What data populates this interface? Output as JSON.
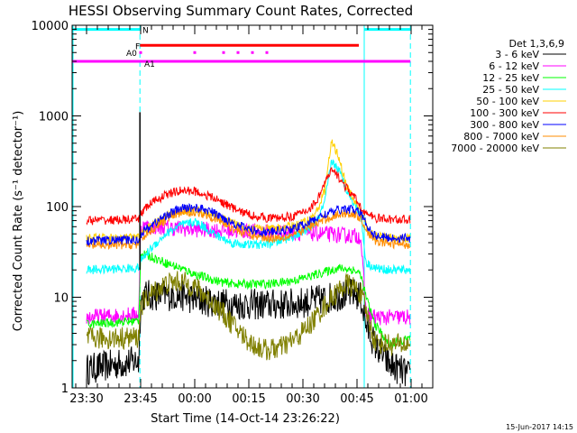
{
  "chart_data": {
    "type": "line",
    "title": "HESSI Observing Summary Count Rates, Corrected",
    "xlabel": "Start Time (14-Oct-14 23:26:22)",
    "ylabel": "Corrected Count Rate (s⁻¹ detector⁻¹)",
    "ylim": [
      1,
      10000
    ],
    "yscale": "log",
    "xlim_minutes": [
      -4,
      96
    ],
    "x_ticks": [
      "23:30",
      "23:45",
      "00:00",
      "00:15",
      "00:30",
      "00:45",
      "01:00"
    ],
    "y_ticks": [
      "1",
      "10",
      "100",
      "1000",
      "10000"
    ],
    "footer_date": "15-Jun-2017 14:15",
    "legend": {
      "title": "Det 1,3,6,9",
      "placement": "right"
    },
    "series": [
      {
        "name": "3 - 6 keV",
        "color": "#000000",
        "x_min": [
          0,
          14.5,
          15,
          16,
          18,
          22,
          26,
          30,
          34,
          38,
          42,
          46,
          50,
          54,
          58,
          62,
          66,
          70,
          74,
          76,
          77.5,
          80,
          84,
          88,
          89.8
        ],
        "y": [
          1.6,
          2.0,
          9.0,
          10.5,
          10.5,
          10.5,
          10.5,
          9.5,
          9.0,
          8.5,
          8.3,
          8.3,
          8.3,
          8.3,
          8.5,
          9.0,
          9.5,
          10.5,
          11,
          10,
          5,
          3,
          1.8,
          1.5,
          1.3
        ]
      },
      {
        "name": "6 - 12 keV",
        "color": "#ff00ff",
        "x_min": [
          0,
          14.5,
          15,
          18,
          24,
          30,
          36,
          42,
          48,
          54,
          60,
          66,
          72,
          76,
          77.5,
          80,
          84,
          89.8
        ],
        "y": [
          6,
          6.5,
          60,
          60,
          58,
          56,
          55,
          54,
          53,
          52,
          51,
          50,
          48,
          47,
          6.5,
          6,
          6,
          6
        ]
      },
      {
        "name": "12 - 25 keV",
        "color": "#00ff00",
        "x_min": [
          0,
          14.5,
          15,
          18,
          22,
          26,
          30,
          34,
          38,
          42,
          46,
          50,
          54,
          58,
          62,
          66,
          70,
          74,
          76,
          77.5,
          80,
          84,
          89.8
        ],
        "y": [
          5,
          5.5,
          30,
          28,
          24,
          21,
          18,
          16,
          14.5,
          14,
          14,
          14,
          14.5,
          15.5,
          17,
          19,
          21,
          20,
          18,
          10,
          5,
          3,
          3.5
        ]
      },
      {
        "name": "25 - 50 keV",
        "color": "#00ffff",
        "x_min": [
          0,
          14.5,
          15,
          18,
          22,
          26,
          30,
          32,
          36,
          40,
          44,
          48,
          52,
          56,
          60,
          64,
          66,
          68,
          70,
          72,
          74,
          76,
          77.5,
          80,
          84,
          89.8
        ],
        "y": [
          20,
          21,
          25,
          35,
          50,
          62,
          68,
          62,
          48,
          40,
          38,
          38,
          40,
          45,
          52,
          70,
          110,
          320,
          250,
          160,
          110,
          85,
          24,
          21,
          20,
          20
        ]
      },
      {
        "name": "50 - 100 keV",
        "color": "#ffd000",
        "x_min": [
          0,
          14.5,
          15,
          18,
          22,
          26,
          30,
          34,
          38,
          42,
          46,
          50,
          54,
          58,
          62,
          64,
          66,
          68,
          70,
          72,
          74,
          76,
          78,
          80,
          84,
          89.8
        ],
        "y": [
          45,
          45,
          50,
          62,
          78,
          90,
          92,
          85,
          72,
          62,
          58,
          56,
          58,
          62,
          72,
          90,
          150,
          520,
          350,
          170,
          120,
          90,
          55,
          47,
          45,
          45
        ]
      },
      {
        "name": "100 - 300 keV",
        "color": "#ff0000",
        "x_min": [
          0,
          14.5,
          15,
          18,
          22,
          26,
          30,
          34,
          38,
          42,
          46,
          50,
          54,
          58,
          62,
          64,
          66,
          68,
          70,
          72,
          74,
          76,
          78,
          80,
          84,
          89.8
        ],
        "y": [
          70,
          72,
          85,
          110,
          135,
          150,
          148,
          130,
          110,
          90,
          80,
          75,
          75,
          80,
          95,
          120,
          180,
          250,
          210,
          160,
          130,
          100,
          80,
          75,
          72,
          72
        ]
      },
      {
        "name": "300 - 800 keV",
        "color": "#0000ff",
        "x_min": [
          0,
          14.5,
          15,
          18,
          22,
          26,
          30,
          34,
          38,
          42,
          46,
          50,
          54,
          58,
          62,
          66,
          70,
          72,
          74,
          76,
          78,
          80,
          84,
          89.8
        ],
        "y": [
          42,
          43,
          50,
          62,
          80,
          95,
          98,
          90,
          75,
          62,
          55,
          52,
          54,
          58,
          68,
          82,
          92,
          95,
          92,
          85,
          60,
          48,
          45,
          45
        ]
      },
      {
        "name": "800 - 7000 keV",
        "color": "#ff8c00",
        "x_min": [
          0,
          14.5,
          15,
          18,
          22,
          26,
          30,
          34,
          38,
          42,
          46,
          50,
          54,
          58,
          62,
          66,
          70,
          72,
          74,
          76,
          78,
          80,
          84,
          89.8
        ],
        "y": [
          37,
          38,
          44,
          55,
          72,
          85,
          88,
          80,
          66,
          54,
          48,
          45,
          46,
          50,
          60,
          72,
          82,
          85,
          82,
          76,
          52,
          42,
          39,
          38
        ]
      },
      {
        "name": "7000 - 20000 keV",
        "color": "#808000",
        "x_min": [
          0,
          14.5,
          15,
          18,
          22,
          26,
          30,
          34,
          38,
          42,
          46,
          50,
          54,
          58,
          62,
          66,
          70,
          72,
          74,
          76,
          78,
          80,
          84,
          89.8
        ],
        "y": [
          3.5,
          3.6,
          8,
          11,
          14,
          15,
          13,
          9.5,
          6.5,
          4.3,
          3.0,
          2.6,
          2.8,
          3.5,
          5,
          8,
          12,
          14,
          13,
          11,
          6,
          3.2,
          3,
          3
        ]
      }
    ],
    "annotations": {
      "spike": {
        "x_min": 14.8,
        "y": 1100
      },
      "night_intervals": [
        [
          -4,
          14.8
        ],
        [
          77,
          89.8
        ]
      ],
      "dashed_verticals": [
        14.8,
        89.8
      ],
      "solid_verticals": [
        77
      ],
      "flags": [
        {
          "label": "N",
          "color": "#00ffff",
          "y": 9000,
          "segments": [
            [
              -4,
              14.8
            ],
            [
              77,
              89.8
            ]
          ]
        },
        {
          "label": "F",
          "color": "#ff0000",
          "y": 6000,
          "segments": [
            [
              14.8,
              75.5
            ]
          ]
        },
        {
          "label": "A0",
          "color": "#ff00ff",
          "y": 4000,
          "segments": [
            [
              -4,
              89.8
            ]
          ]
        },
        {
          "label": "A1",
          "color": "#ff00ff",
          "y": 4000,
          "segments": []
        }
      ],
      "flag_dots": {
        "color": "#ff00ff",
        "y": 5000,
        "x_min": [
          15,
          30,
          38,
          42,
          46,
          50
        ]
      }
    }
  }
}
